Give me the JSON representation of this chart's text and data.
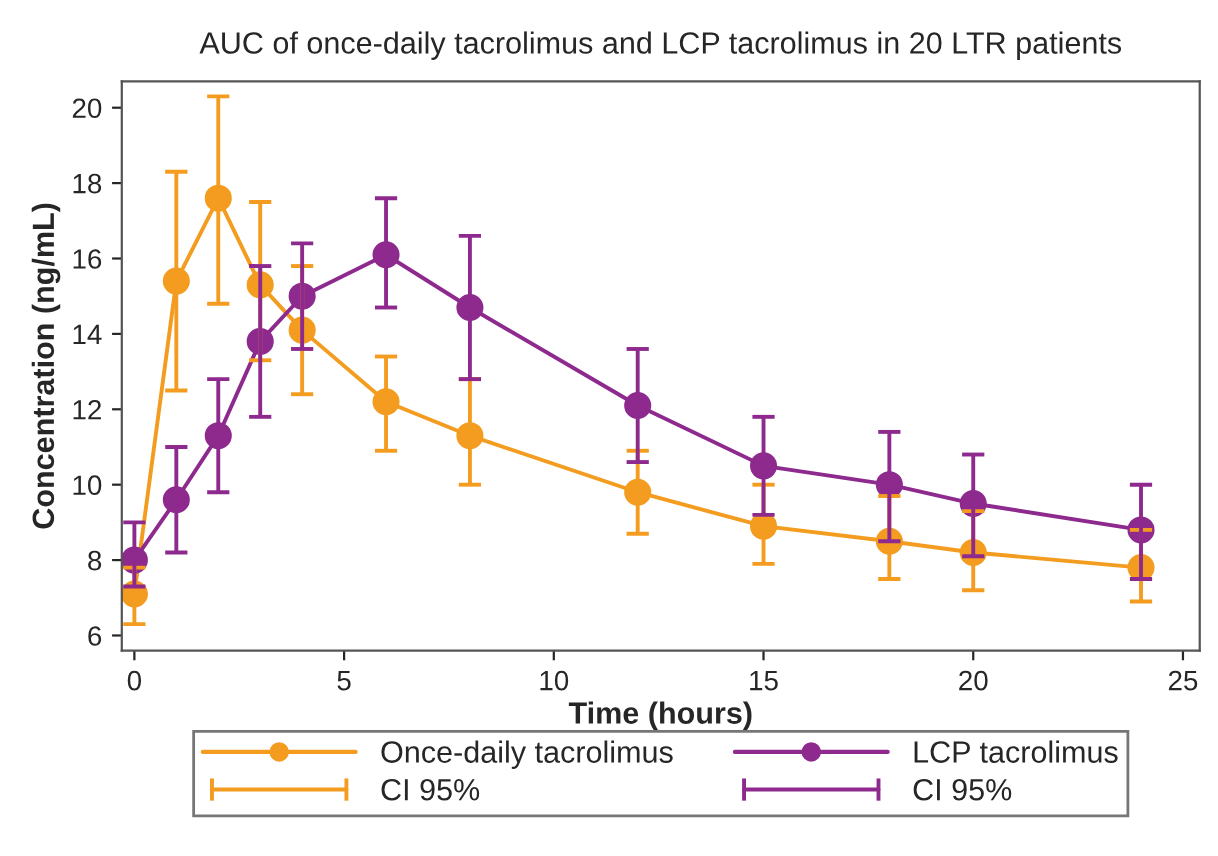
{
  "chart_data": {
    "type": "line",
    "title": "AUC of once-daily tacrolimus and LCP tacrolimus in 20 LTR patients",
    "xlabel": "Time (hours)",
    "ylabel": "Concentration (ng/mL)",
    "x": [
      0,
      1,
      2,
      3,
      4,
      6,
      8,
      12,
      15,
      18,
      20,
      24
    ],
    "series": [
      {
        "name": "Once-daily tacrolimus",
        "color": "#f39c1f",
        "values": [
          7.1,
          15.4,
          17.6,
          15.3,
          14.1,
          12.2,
          11.3,
          9.8,
          8.9,
          8.5,
          8.2,
          7.8
        ],
        "errors": [
          [
            6.3,
            7.8
          ],
          [
            12.5,
            18.3
          ],
          [
            14.8,
            20.3
          ],
          [
            13.3,
            17.5
          ],
          [
            12.4,
            15.8
          ],
          [
            10.9,
            13.4
          ],
          [
            10.0,
            12.8
          ],
          [
            8.7,
            10.9
          ],
          [
            7.9,
            10.0
          ],
          [
            7.5,
            9.7
          ],
          [
            7.2,
            9.3
          ],
          [
            6.9,
            8.8
          ]
        ]
      },
      {
        "name": "LCP tacrolimus",
        "color": "#8e2a8e",
        "values": [
          8.0,
          9.6,
          11.3,
          13.8,
          15.0,
          16.1,
          14.7,
          12.1,
          10.5,
          10.0,
          9.5,
          8.8
        ],
        "errors": [
          [
            7.3,
            9.0
          ],
          [
            8.2,
            11.0
          ],
          [
            9.8,
            12.8
          ],
          [
            11.8,
            15.8
          ],
          [
            13.6,
            16.4
          ],
          [
            14.7,
            17.6
          ],
          [
            12.8,
            16.6
          ],
          [
            10.6,
            13.6
          ],
          [
            9.2,
            11.8
          ],
          [
            8.5,
            11.4
          ],
          [
            8.1,
            10.8
          ],
          [
            7.5,
            10.0
          ]
        ]
      }
    ],
    "annotations": [
      "CI 95%",
      "CI 95%"
    ],
    "xlim": [
      -0.3,
      25.4
    ],
    "xticks": [
      0,
      5,
      10,
      15,
      20,
      25
    ],
    "ylim": [
      5.6,
      20.7
    ],
    "yticks": [
      6,
      8,
      10,
      12,
      14,
      16,
      18,
      20
    ],
    "grid": false,
    "legend": "bottom",
    "marker": "circle",
    "line_style": "solid"
  }
}
